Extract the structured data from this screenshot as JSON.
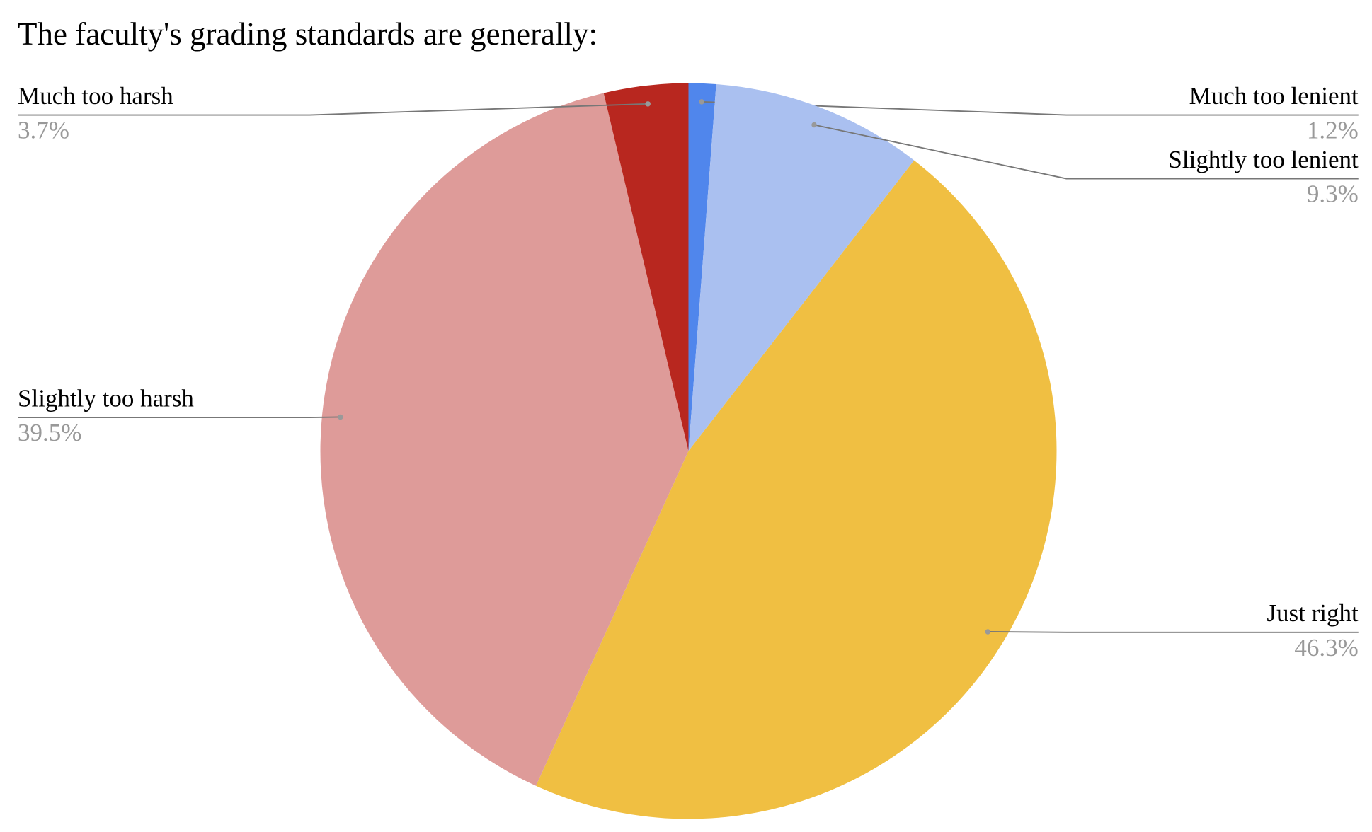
{
  "chart_data": {
    "type": "pie",
    "title": "The faculty's grading standards are generally:",
    "categories": [
      "Much too lenient",
      "Slightly too lenient",
      "Just right",
      "Slightly too harsh",
      "Much too harsh"
    ],
    "values": [
      1.2,
      9.3,
      46.3,
      39.5,
      3.7
    ],
    "value_labels": [
      "1.2%",
      "9.3%",
      "46.3%",
      "39.5%",
      "3.7%"
    ],
    "colors": [
      "#5086ec",
      "#aac0f0",
      "#f0bf42",
      "#de9b99",
      "#b8271f"
    ]
  }
}
